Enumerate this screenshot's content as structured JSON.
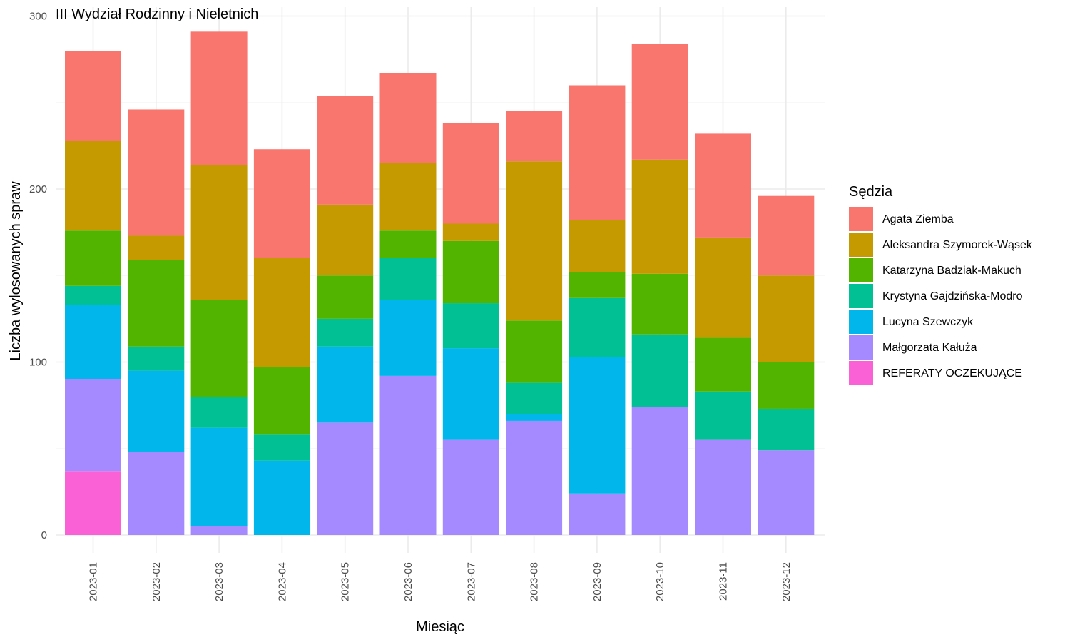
{
  "chart_data": {
    "type": "bar",
    "stacked": true,
    "title": "III Wydział Rodzinny i Nieletnich",
    "xlabel": "Miesiąc",
    "ylabel": "Liczba wylosowanych spraw",
    "ylim": [
      0,
      300
    ],
    "yticks": [
      "0",
      "100",
      "200",
      "300"
    ],
    "yticks_values": [
      0,
      100,
      200,
      300
    ],
    "grid": true,
    "legend_title": "Sędzia",
    "legend_position": "right",
    "categories": [
      "2023-01",
      "2023-02",
      "2023-03",
      "2023-04",
      "2023-05",
      "2023-06",
      "2023-07",
      "2023-08",
      "2023-09",
      "2023-10",
      "2023-11",
      "2023-12"
    ],
    "stack_order_bottom_to_top": [
      "REFERATY OCZEKUJĄCE",
      "Małgorzata Kałuża",
      "Lucyna Szewczyk",
      "Krystyna Gajdzińska-Modro",
      "Katarzyna Badziak-Makuch",
      "Aleksandra Szymorek-Wąsek",
      "Agata Ziemba"
    ],
    "series": [
      {
        "name": "Agata Ziemba",
        "color": "#F8766D",
        "values": [
          52,
          73,
          77,
          63,
          63,
          52,
          58,
          29,
          78,
          67,
          60,
          46
        ]
      },
      {
        "name": "Aleksandra Szymorek-Wąsek",
        "color": "#C49A00",
        "values": [
          52,
          14,
          78,
          63,
          41,
          39,
          10,
          92,
          30,
          66,
          58,
          50
        ]
      },
      {
        "name": "Katarzyna Badziak-Makuch",
        "color": "#53B400",
        "values": [
          32,
          50,
          56,
          39,
          25,
          16,
          36,
          36,
          15,
          35,
          31,
          27
        ]
      },
      {
        "name": "Krystyna Gajdzińska-Modro",
        "color": "#00C094",
        "values": [
          11,
          14,
          18,
          15,
          16,
          24,
          26,
          18,
          34,
          42,
          28,
          24
        ]
      },
      {
        "name": "Lucyna Szewczyk",
        "color": "#00B6EB",
        "values": [
          43,
          47,
          57,
          43,
          44,
          44,
          53,
          4,
          79,
          0,
          0,
          0
        ]
      },
      {
        "name": "Małgorzata Kałuża",
        "color": "#A58AFF",
        "values": [
          53,
          48,
          5,
          0,
          65,
          92,
          55,
          66,
          24,
          74,
          55,
          49
        ]
      },
      {
        "name": "REFERATY OCZEKUJĄCE",
        "color": "#FB61D7",
        "values": [
          37,
          0,
          0,
          0,
          0,
          0,
          0,
          0,
          0,
          0,
          0,
          0
        ]
      }
    ]
  }
}
